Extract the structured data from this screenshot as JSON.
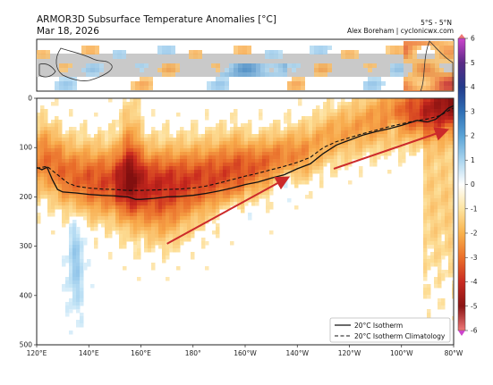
{
  "header": {
    "title": "ARMOR3D Subsurface Temperature Anomalies [°C]",
    "date": "Mar 18, 2026",
    "region": "5°S - 5°N",
    "credit": "Alex Boreham | cyclonicwx.com"
  },
  "chart_data": {
    "type": "heatmap",
    "title": "ARMOR3D Subsurface Temperature Anomalies [°C]",
    "subtitle": "Mar 18, 2026",
    "region": "5°S - 5°N",
    "x_axis": {
      "ticks": [
        "120°E",
        "140°E",
        "160°E",
        "180°",
        "160°W",
        "140°W",
        "120°W",
        "100°W",
        "80°W"
      ],
      "range_lon_east": [
        120,
        280
      ]
    },
    "y_axis": {
      "ticks": [
        0,
        100,
        200,
        300,
        400,
        500
      ],
      "range": [
        500,
        0
      ],
      "inverted": true
    },
    "colorbar": {
      "ticks": [
        6,
        5,
        4,
        3,
        2,
        1,
        0,
        -1,
        -2,
        -3,
        -4,
        -5,
        -6
      ],
      "range": [
        -6,
        6
      ],
      "colors": [
        "#cc44cc",
        "#5b2a86",
        "#223a8a",
        "#2f6fb5",
        "#5aa3d6",
        "#a9d4ee",
        "#ffffff",
        "#fde4a0",
        "#f9b24c",
        "#eb6f2a",
        "#c92b22",
        "#8a1414",
        "#f07878"
      ]
    },
    "series": [
      {
        "name": "20°C Isotherm",
        "style": "solid",
        "color": "#111111",
        "points": [
          [
            120,
            140
          ],
          [
            122,
            145
          ],
          [
            124,
            140
          ],
          [
            126,
            165
          ],
          [
            128,
            185
          ],
          [
            130,
            190
          ],
          [
            135,
            192
          ],
          [
            140,
            195
          ],
          [
            145,
            197
          ],
          [
            150,
            198
          ],
          [
            155,
            200
          ],
          [
            158,
            205
          ],
          [
            160,
            205
          ],
          [
            165,
            203
          ],
          [
            170,
            200
          ],
          [
            175,
            199
          ],
          [
            180,
            197
          ],
          [
            185,
            193
          ],
          [
            190,
            188
          ],
          [
            195,
            182
          ],
          [
            200,
            175
          ],
          [
            205,
            170
          ],
          [
            210,
            162
          ],
          [
            215,
            155
          ],
          [
            220,
            143
          ],
          [
            225,
            133
          ],
          [
            230,
            112
          ],
          [
            235,
            95
          ],
          [
            240,
            85
          ],
          [
            245,
            75
          ],
          [
            250,
            68
          ],
          [
            255,
            62
          ],
          [
            260,
            55
          ],
          [
            263,
            50
          ],
          [
            266,
            45
          ],
          [
            270,
            48
          ],
          [
            273,
            43
          ],
          [
            276,
            30
          ],
          [
            278,
            20
          ],
          [
            280,
            15
          ]
        ]
      },
      {
        "name": "20°C Isotherm Climatology",
        "style": "dashed",
        "color": "#111111",
        "points": [
          [
            120,
            142
          ],
          [
            124,
            138
          ],
          [
            128,
            155
          ],
          [
            132,
            172
          ],
          [
            135,
            178
          ],
          [
            140,
            182
          ],
          [
            145,
            184
          ],
          [
            150,
            185
          ],
          [
            155,
            187
          ],
          [
            160,
            187
          ],
          [
            165,
            186
          ],
          [
            170,
            185
          ],
          [
            175,
            184
          ],
          [
            180,
            182
          ],
          [
            185,
            178
          ],
          [
            190,
            172
          ],
          [
            195,
            165
          ],
          [
            200,
            158
          ],
          [
            205,
            152
          ],
          [
            210,
            145
          ],
          [
            215,
            138
          ],
          [
            220,
            130
          ],
          [
            225,
            120
          ],
          [
            230,
            100
          ],
          [
            235,
            88
          ],
          [
            240,
            80
          ],
          [
            245,
            72
          ],
          [
            250,
            65
          ],
          [
            255,
            58
          ],
          [
            260,
            52
          ],
          [
            265,
            46
          ],
          [
            270,
            42
          ],
          [
            275,
            35
          ],
          [
            278,
            25
          ],
          [
            280,
            20
          ]
        ]
      }
    ],
    "annotations": [
      {
        "type": "arrow",
        "color": "#cc2a2a",
        "from": [
          170,
          295
        ],
        "to": [
          216,
          162
        ]
      },
      {
        "type": "arrow",
        "color": "#cc2a2a",
        "from": [
          234,
          143
        ],
        "to": [
          277,
          65
        ]
      }
    ],
    "inset_map": {
      "latitude_band": "5°S - 5°N",
      "lon_range": [
        120,
        280
      ]
    },
    "grid": false,
    "legend_position": "bottom-right"
  }
}
